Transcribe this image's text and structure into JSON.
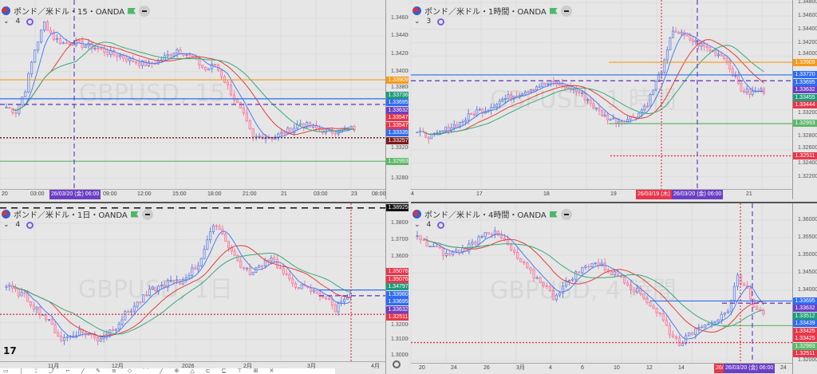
{
  "panels": [
    {
      "id": "tl",
      "title": "ポンド／米ドル・15・OANDA",
      "indicator_count": "4",
      "watermark": "GBPUSD, 15",
      "ticks": [
        "1.34600",
        "1.34400",
        "1.34200",
        "1.34000",
        "1.33800",
        "1.33200",
        "1.32800"
      ],
      "price_labels": [
        {
          "text": "1.33909",
          "value": 1.33909,
          "color": "#f59a1c"
        },
        {
          "text": "1.33736",
          "value": 1.33736,
          "color": "#1f9a7a"
        },
        {
          "text": "1.33695",
          "value": 1.33695,
          "color": "#2f6cf0"
        },
        {
          "text": "1.33632",
          "value": 1.33632,
          "color": "#6b3fc4"
        },
        {
          "text": "1.33547",
          "value": 1.33547,
          "color": "#e8364a"
        },
        {
          "text": "1.33547",
          "value": 1.33547,
          "color": "#e8364a"
        },
        {
          "text": "1.33335",
          "value": 1.33335,
          "color": "#2f6cf0"
        },
        {
          "text": "1.33257",
          "value": 1.33257,
          "color": "#7a1c1c"
        },
        {
          "text": "1.32993",
          "value": 1.32993,
          "color": "#5cb86a"
        }
      ],
      "time_labels": [
        "20",
        "03:00",
        "09:00",
        "12:00",
        "15:00",
        "18:00",
        "21:00",
        "21",
        "03:00",
        "23",
        "08:00"
      ],
      "date_labels": [
        {
          "text": "26/03/20 (金)   06:00",
          "color": "#6b3fc4"
        }
      ],
      "closes": [
        1.336,
        1.3355,
        1.338,
        1.3425,
        1.3455,
        1.3438,
        1.3432,
        1.3433,
        1.343,
        1.3428,
        1.3425,
        1.342,
        1.3418,
        1.3413,
        1.341,
        1.3408,
        1.3412,
        1.3418,
        1.3425,
        1.342,
        1.3412,
        1.3402,
        1.3408,
        1.339,
        1.337,
        1.335,
        1.3325,
        1.3328,
        1.3326,
        1.333,
        1.3335,
        1.3342,
        1.3338,
        1.3335,
        1.3332,
        1.3334,
        1.3336
      ]
    },
    {
      "id": "tr",
      "title": "ポンド／米ドル・1時間・OANDA",
      "indicator_count": "3",
      "watermark": "GBPUSD, 1 時間",
      "ticks": [
        "1.34800",
        "1.34600",
        "1.34400",
        "1.34200",
        "1.34000",
        "1.33200",
        "1.32800",
        "1.32600",
        "1.32400",
        "1.32200"
      ],
      "price_labels": [
        {
          "text": "1.33909",
          "value": 1.33909,
          "color": "#f59a1c"
        },
        {
          "text": "1.33720",
          "value": 1.3372,
          "color": "#2f6cf0"
        },
        {
          "text": "1.33695",
          "value": 1.33695,
          "color": "#2f6cf0"
        },
        {
          "text": "1.33632",
          "value": 1.33632,
          "color": "#6b3fc4"
        },
        {
          "text": "1.33455",
          "value": 1.33455,
          "color": "#1f9a7a"
        },
        {
          "text": "1.33444",
          "value": 1.33444,
          "color": "#e8364a"
        },
        {
          "text": "1.32993",
          "value": 1.32993,
          "color": "#5cb86a"
        },
        {
          "text": "1.32511",
          "value": 1.32511,
          "color": "#e8364a"
        }
      ],
      "time_labels": [
        "4",
        "17",
        "18",
        "19",
        "21"
      ],
      "date_labels": [
        {
          "text": "26/03/19 (木)",
          "color": "#e8364a"
        },
        {
          "text": "26/03/20 (金)   06:00",
          "color": "#6b3fc4"
        }
      ],
      "closes": [
        1.3285,
        1.3282,
        1.328,
        1.3288,
        1.3295,
        1.33,
        1.331,
        1.3318,
        1.332,
        1.3328,
        1.3335,
        1.334,
        1.3345,
        1.335,
        1.3355,
        1.3358,
        1.336,
        1.3356,
        1.3352,
        1.3345,
        1.3335,
        1.332,
        1.331,
        1.3305,
        1.3302,
        1.3308,
        1.3315,
        1.333,
        1.336,
        1.339,
        1.344,
        1.3432,
        1.3425,
        1.3418,
        1.3412,
        1.3405,
        1.34,
        1.3375,
        1.335,
        1.3345,
        1.3348
      ]
    },
    {
      "id": "bl",
      "title": "ポンド／米ドル・1日・OANDA",
      "indicator_count": "4",
      "watermark": "GBPUSD, 1日",
      "ticks": [
        "1.38000",
        "1.37000",
        "1.36000",
        "1.32000",
        "1.31000",
        "1.30000"
      ],
      "price_labels": [
        {
          "text": "1.38925",
          "value": 1.38925,
          "color": "#111111"
        },
        {
          "text": "1.35076",
          "value": 1.35076,
          "color": "#e8364a"
        },
        {
          "text": "1.35076",
          "value": 1.35076,
          "color": "#e8364a"
        },
        {
          "text": "1.34797",
          "value": 1.34797,
          "color": "#1f9a7a"
        },
        {
          "text": "1.33980",
          "value": 1.3398,
          "color": "#2f6cf0"
        },
        {
          "text": "1.33695",
          "value": 1.33695,
          "color": "#2f6cf0"
        },
        {
          "text": "1.33632",
          "value": 1.33632,
          "color": "#6b3fc4"
        },
        {
          "text": "1.32511",
          "value": 1.32511,
          "color": "#e8364a"
        }
      ],
      "time_labels": [
        "11月",
        "12月",
        "2026",
        "2月",
        "3月",
        "4月"
      ],
      "date_labels": [],
      "closes": [
        1.342,
        1.339,
        1.336,
        1.33,
        1.325,
        1.318,
        1.31,
        1.312,
        1.315,
        1.313,
        1.31,
        1.314,
        1.318,
        1.325,
        1.33,
        1.335,
        1.34,
        1.342,
        1.345,
        1.344,
        1.35,
        1.355,
        1.37,
        1.38,
        1.37,
        1.36,
        1.352,
        1.35,
        1.356,
        1.36,
        1.352,
        1.345,
        1.342,
        1.34,
        1.338,
        1.335,
        1.328,
        1.336
      ]
    },
    {
      "id": "br",
      "title": "ポンド／米ドル・4時間・OANDA",
      "indicator_count": "4",
      "watermark": "GBPUSD, 4 時間",
      "ticks": [
        "1.36000",
        "1.35500",
        "1.35000",
        "1.34500",
        "1.34000",
        "1.32000"
      ],
      "price_labels": [
        {
          "text": "1.33695",
          "value": 1.33695,
          "color": "#2f6cf0"
        },
        {
          "text": "1.33632",
          "value": 1.33632,
          "color": "#6b3fc4"
        },
        {
          "text": "1.33512",
          "value": 1.33512,
          "color": "#1f9a7a"
        },
        {
          "text": "1.33439",
          "value": 1.33439,
          "color": "#2f6cf0"
        },
        {
          "text": "1.33425",
          "value": 1.33425,
          "color": "#e8364a"
        },
        {
          "text": "1.33425",
          "value": 1.33425,
          "color": "#e8364a"
        },
        {
          "text": "1.32993",
          "value": 1.32993,
          "color": "#5cb86a"
        },
        {
          "text": "1.32511",
          "value": 1.32511,
          "color": "#e8364a"
        }
      ],
      "time_labels": [
        "20",
        "24",
        "26",
        "3月",
        "4",
        "6",
        "10",
        "12",
        "14",
        "24"
      ],
      "date_labels": [
        {
          "text": "26/",
          "color": "#e8364a"
        },
        {
          "text": "26/03/20 (金)   06:00",
          "color": "#6b3fc4"
        }
      ],
      "closes": [
        1.355,
        1.353,
        1.352,
        1.35,
        1.351,
        1.352,
        1.354,
        1.357,
        1.356,
        1.354,
        1.35,
        1.347,
        1.344,
        1.342,
        1.338,
        1.341,
        1.344,
        1.346,
        1.348,
        1.347,
        1.345,
        1.344,
        1.341,
        1.339,
        1.336,
        1.333,
        1.328,
        1.325,
        1.327,
        1.33,
        1.331,
        1.332,
        1.333,
        1.344,
        1.34,
        1.334
      ]
    }
  ],
  "colors": {
    "up": "#6a84d8",
    "down": "#f07fa0",
    "ma_fast": "#4a7cf0",
    "ma_mid": "#e0403a",
    "ma_slow": "#3aaa7a"
  },
  "toolbar": {
    "tools": [
      "▭",
      "│",
      "╎",
      "⤴",
      "⌐",
      "╱",
      "✎",
      "≡",
      "◇",
      "⌒",
      "╱",
      "⊕",
      "△",
      "⊏",
      "⊑",
      "⊤",
      "⊞",
      "✕"
    ]
  }
}
